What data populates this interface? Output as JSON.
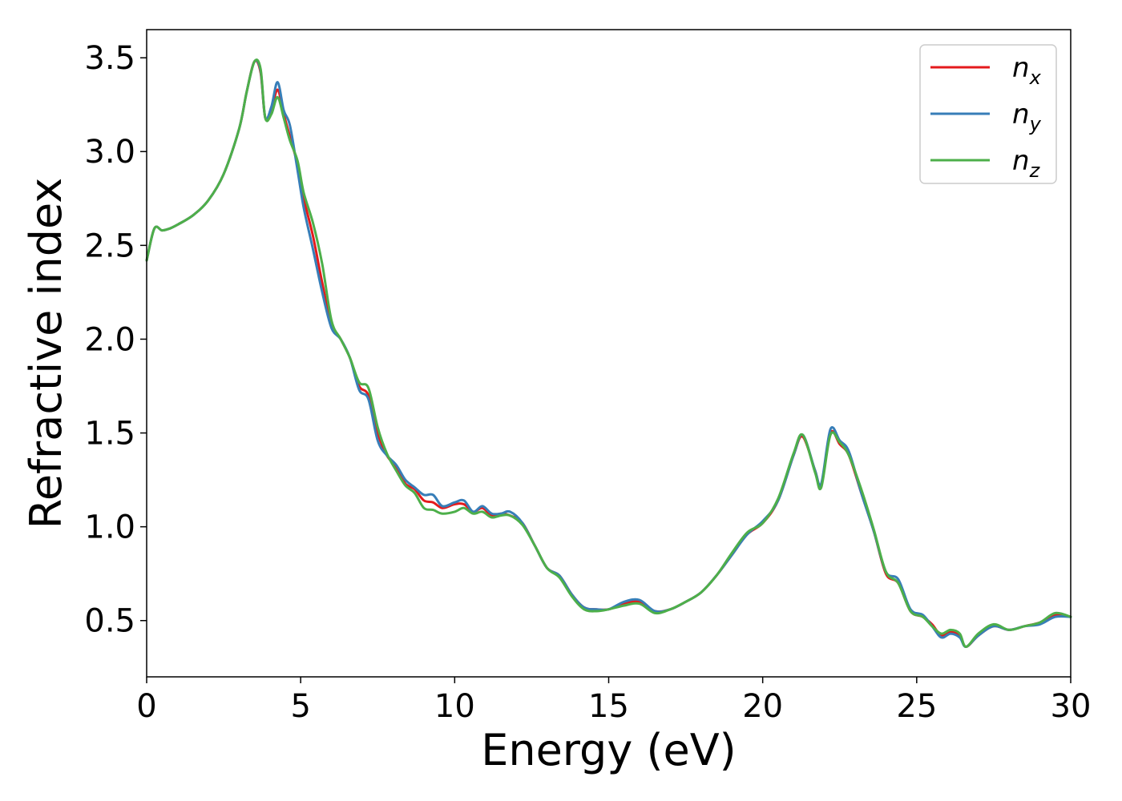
{
  "chart_data": {
    "type": "line",
    "title": "",
    "xlabel": "Energy (eV)",
    "ylabel": "Refractive index",
    "xlim": [
      0,
      30
    ],
    "ylim": [
      0.2,
      3.65
    ],
    "xticks": [
      0,
      5,
      10,
      15,
      20,
      25,
      30
    ],
    "yticks": [
      0.5,
      1.0,
      1.5,
      2.0,
      2.5,
      3.0,
      3.5
    ],
    "xtick_labels": [
      "0",
      "5",
      "10",
      "15",
      "20",
      "25",
      "30"
    ],
    "ytick_labels": [
      "0.5",
      "1.0",
      "1.5",
      "2.0",
      "2.5",
      "3.0",
      "3.5"
    ],
    "grid": false,
    "legend_position": "top-right",
    "x": [
      0,
      0.25,
      0.5,
      0.75,
      1,
      1.5,
      2,
      2.5,
      3,
      3.25,
      3.5,
      3.7,
      3.85,
      4.05,
      4.25,
      4.45,
      4.65,
      4.9,
      5.1,
      5.4,
      5.7,
      6.0,
      6.3,
      6.6,
      6.9,
      7.2,
      7.5,
      7.8,
      8.1,
      8.4,
      8.7,
      9.0,
      9.3,
      9.6,
      10.0,
      10.3,
      10.6,
      10.9,
      11.2,
      11.5,
      11.8,
      12.2,
      12.6,
      13.0,
      13.4,
      13.8,
      14.2,
      14.6,
      15.0,
      15.5,
      16.0,
      16.5,
      17.0,
      17.5,
      18.0,
      18.5,
      19.0,
      19.5,
      20.0,
      20.5,
      21.0,
      21.3,
      21.7,
      21.9,
      22.2,
      22.5,
      22.8,
      23.2,
      23.6,
      24.0,
      24.4,
      24.8,
      25.2,
      25.5,
      25.8,
      26.1,
      26.4,
      26.6,
      27.0,
      27.5,
      28.0,
      28.5,
      29.0,
      29.5,
      30.0
    ],
    "series": [
      {
        "name": "n_x",
        "color": "#e41a1c",
        "values": [
          2.42,
          2.59,
          2.58,
          2.59,
          2.61,
          2.66,
          2.74,
          2.88,
          3.12,
          3.32,
          3.48,
          3.42,
          3.18,
          3.22,
          3.33,
          3.2,
          3.08,
          2.93,
          2.75,
          2.55,
          2.3,
          2.08,
          2.0,
          1.9,
          1.75,
          1.7,
          1.5,
          1.38,
          1.32,
          1.23,
          1.2,
          1.14,
          1.13,
          1.1,
          1.12,
          1.12,
          1.08,
          1.1,
          1.06,
          1.07,
          1.06,
          1.02,
          0.9,
          0.78,
          0.74,
          0.64,
          0.57,
          0.56,
          0.56,
          0.59,
          0.6,
          0.55,
          0.56,
          0.6,
          0.65,
          0.74,
          0.85,
          0.96,
          1.02,
          1.14,
          1.38,
          1.48,
          1.3,
          1.22,
          1.5,
          1.44,
          1.38,
          1.18,
          0.98,
          0.75,
          0.7,
          0.55,
          0.52,
          0.48,
          0.42,
          0.44,
          0.42,
          0.36,
          0.42,
          0.47,
          0.45,
          0.47,
          0.49,
          0.53,
          0.52
        ]
      },
      {
        "name": "n_y",
        "color": "#377eb8",
        "values": [
          2.42,
          2.59,
          2.58,
          2.59,
          2.61,
          2.66,
          2.74,
          2.88,
          3.12,
          3.32,
          3.48,
          3.43,
          3.18,
          3.24,
          3.37,
          3.22,
          3.14,
          2.9,
          2.7,
          2.48,
          2.25,
          2.06,
          2.0,
          1.9,
          1.73,
          1.68,
          1.46,
          1.38,
          1.33,
          1.25,
          1.21,
          1.17,
          1.17,
          1.11,
          1.13,
          1.14,
          1.08,
          1.11,
          1.07,
          1.07,
          1.08,
          1.02,
          0.9,
          0.78,
          0.74,
          0.64,
          0.57,
          0.56,
          0.56,
          0.6,
          0.61,
          0.55,
          0.56,
          0.6,
          0.65,
          0.74,
          0.85,
          0.96,
          1.03,
          1.14,
          1.38,
          1.49,
          1.3,
          1.23,
          1.52,
          1.46,
          1.4,
          1.18,
          0.98,
          0.76,
          0.72,
          0.56,
          0.53,
          0.47,
          0.41,
          0.43,
          0.41,
          0.36,
          0.42,
          0.47,
          0.45,
          0.47,
          0.48,
          0.52,
          0.52
        ]
      },
      {
        "name": "n_z",
        "color": "#4daf4a",
        "values": [
          2.42,
          2.59,
          2.58,
          2.59,
          2.61,
          2.66,
          2.74,
          2.88,
          3.12,
          3.32,
          3.48,
          3.44,
          3.18,
          3.2,
          3.29,
          3.18,
          3.06,
          2.95,
          2.78,
          2.62,
          2.4,
          2.1,
          2.0,
          1.9,
          1.77,
          1.74,
          1.53,
          1.39,
          1.3,
          1.22,
          1.18,
          1.1,
          1.09,
          1.07,
          1.08,
          1.1,
          1.07,
          1.08,
          1.05,
          1.06,
          1.06,
          1.01,
          0.9,
          0.78,
          0.73,
          0.63,
          0.56,
          0.55,
          0.56,
          0.58,
          0.59,
          0.54,
          0.56,
          0.6,
          0.65,
          0.74,
          0.86,
          0.97,
          1.02,
          1.15,
          1.39,
          1.49,
          1.29,
          1.21,
          1.49,
          1.45,
          1.38,
          1.2,
          0.99,
          0.76,
          0.7,
          0.55,
          0.52,
          0.47,
          0.43,
          0.45,
          0.43,
          0.36,
          0.43,
          0.48,
          0.45,
          0.47,
          0.49,
          0.54,
          0.52
        ]
      }
    ],
    "legend": [
      {
        "base": "n",
        "sub": "x"
      },
      {
        "base": "n",
        "sub": "y"
      },
      {
        "base": "n",
        "sub": "z"
      }
    ]
  }
}
